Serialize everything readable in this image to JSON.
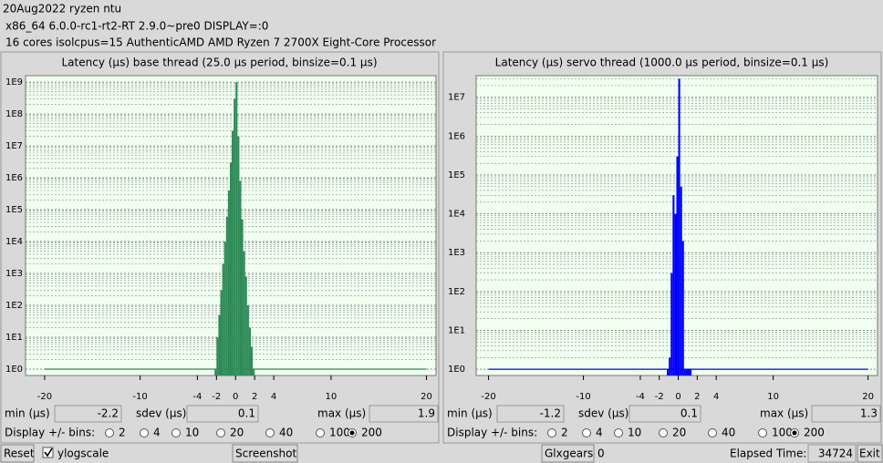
{
  "header": {
    "lines": [
      "20Aug2022 ryzen ntu",
      "x86_64  6.0.0-rc1-rt2-RT  2.9.0~pre0  DISPLAY=:0",
      "16 cores  isolcpus=15   AuthenticAMD  AMD Ryzen 7 2700X Eight-Core Processor"
    ]
  },
  "chart_data": [
    {
      "type": "histogram",
      "title": "Latency (µs) base thread (25.0 µs period, binsize=0.1 µs)",
      "bins": [
        -2.2,
        -2.0,
        -1.8,
        -1.6,
        -1.4,
        -1.2,
        -1.0,
        -0.8,
        -0.6,
        -0.4,
        -0.2,
        0.0,
        0.2,
        0.4,
        0.6,
        0.8,
        1.0,
        1.2,
        1.4,
        1.6,
        1.8,
        2.0
      ],
      "values": [
        1,
        10,
        50,
        300,
        2000,
        10000,
        60000,
        400000,
        3000000,
        30000000,
        300000000,
        1000000000,
        20000000,
        800000,
        50000,
        5000,
        800,
        100,
        20,
        5,
        1
      ],
      "color": "#2e8b57",
      "xlim": [
        -22,
        21
      ],
      "xticks": [
        -20,
        -10,
        -4,
        -2,
        0,
        2,
        4,
        10,
        20
      ],
      "ylim": [
        0.63,
        1600000000
      ],
      "log_y": true,
      "grid": true,
      "yticks": [
        {
          "value": 1,
          "label": "1E0"
        },
        {
          "value": 10,
          "label": "1E1"
        },
        {
          "value": 100,
          "label": "1E2"
        },
        {
          "value": 1000,
          "label": "1E3"
        },
        {
          "value": 10000,
          "label": "1E4"
        },
        {
          "value": 100000,
          "label": "1E5"
        },
        {
          "value": 1000000,
          "label": "1E6"
        },
        {
          "value": 10000000,
          "label": "1E7"
        },
        {
          "value": 100000000,
          "label": "1E8"
        },
        {
          "value": 1000000000,
          "label": "1E9"
        }
      ]
    },
    {
      "type": "histogram",
      "title": "Latency (µs) servo thread (1000.0 µs period, binsize=0.1 µs)",
      "bins": [
        -1.2,
        -1.0,
        -0.8,
        -0.6,
        -0.4,
        -0.2,
        0.0,
        0.2,
        0.4,
        0.6,
        0.8,
        1.0,
        1.2,
        1.4
      ],
      "values": [
        1,
        2,
        300,
        30000,
        10000,
        300000,
        30000000,
        50000,
        2000,
        1,
        1,
        1,
        1
      ],
      "color": "#0000ff",
      "xlim": [
        -21.3,
        21
      ],
      "xticks": [
        -20,
        -10,
        -4,
        -2,
        0,
        2,
        4,
        10,
        20
      ],
      "ylim": [
        0.69,
        36000000
      ],
      "log_y": true,
      "grid": true,
      "yticks": [
        {
          "value": 1,
          "label": "1E0"
        },
        {
          "value": 10,
          "label": "1E1"
        },
        {
          "value": 100,
          "label": "1E2"
        },
        {
          "value": 1000,
          "label": "1E3"
        },
        {
          "value": 10000,
          "label": "1E4"
        },
        {
          "value": 100000,
          "label": "1E5"
        },
        {
          "value": 1000000,
          "label": "1E6"
        },
        {
          "value": 10000000,
          "label": "1E7"
        }
      ]
    }
  ],
  "panels": [
    {
      "stats": [
        {
          "label": "min (µs)",
          "value": -2.2
        },
        {
          "label": "sdev (µs)",
          "value": 0.1
        },
        {
          "label": "max (µs)",
          "value": 1.9
        }
      ],
      "bins_label": "Display +/- bins:",
      "bin_options": [
        2,
        4,
        10,
        20,
        40,
        100,
        200
      ],
      "selected": 200
    },
    {
      "stats": [
        {
          "label": "min (µs)",
          "value": -1.2
        },
        {
          "label": "sdev (µs)",
          "value": 0.1
        },
        {
          "label": "max (µs)",
          "value": 1.3
        }
      ],
      "bins_label": "Display +/- bins:",
      "bin_options": [
        2,
        4,
        10,
        20,
        40,
        100,
        200
      ],
      "selected": 200
    }
  ],
  "footer": {
    "reset": "Reset",
    "ylogscale": "ylogscale",
    "ylogscale_checked": true,
    "screenshot": "Screenshot",
    "glxgears": "Glxgears",
    "glxgears_count": 0,
    "elapsed_label": "Elapsed Time:",
    "elapsed": 34724,
    "exit": "Exit"
  }
}
